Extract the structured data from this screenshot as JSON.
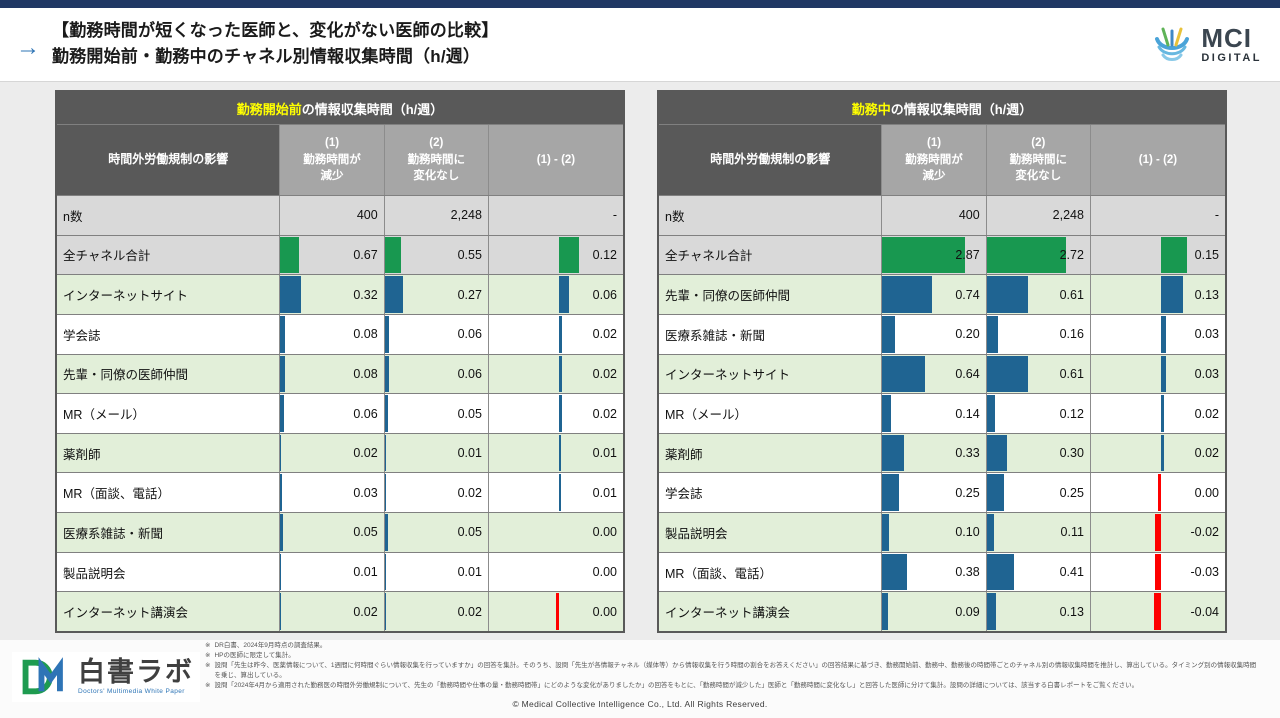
{
  "header": {
    "arrow_glyph": "→",
    "title_line1": "【勤務時間が短くなった医師と、変化がない医師の比較】",
    "title_line2": "勤務開始前・勤務中のチャネル別情報収集時間（h/週）",
    "mci_logo": {
      "name": "MCI",
      "sub": "DIGITAL"
    }
  },
  "tables": [
    {
      "title_highlight": "勤務開始前",
      "title_rest": "の情報収集時間（h/週）",
      "col_headers": {
        "label": "時間外労働規制の影響",
        "col1": "(1)\n勤務時間が\n減少",
        "col2": "(2)\n勤務時間に\n変化なし",
        "diff": "(1) - (2)"
      },
      "n_row": {
        "label": "n数",
        "v1": "400",
        "v2": "2,248",
        "diff": "-"
      },
      "rows": [
        {
          "label": "全チャネル合計",
          "v1": 0.67,
          "v2": 0.55,
          "diff": 0.12,
          "total": true
        },
        {
          "label": "インターネットサイト",
          "v1": 0.32,
          "v2": 0.27,
          "diff": 0.06
        },
        {
          "label": "学会誌",
          "v1": 0.08,
          "v2": 0.06,
          "diff": 0.02
        },
        {
          "label": "先輩・同僚の医師仲間",
          "v1": 0.08,
          "v2": 0.06,
          "diff": 0.02
        },
        {
          "label": "MR（メール）",
          "v1": 0.06,
          "v2": 0.05,
          "diff": 0.02
        },
        {
          "label": "薬剤師",
          "v1": 0.02,
          "v2": 0.01,
          "diff": 0.01
        },
        {
          "label": "MR（面談、電話）",
          "v1": 0.03,
          "v2": 0.02,
          "diff": 0.01
        },
        {
          "label": "医療系雑誌・新聞",
          "v1": 0.05,
          "v2": 0.05,
          "diff": 0.0
        },
        {
          "label": "製品説明会",
          "v1": 0.01,
          "v2": 0.01,
          "diff": 0.0
        },
        {
          "label": "インターネット講演会",
          "v1": 0.02,
          "v2": 0.02,
          "diff": 0.0,
          "red_sliver": true
        }
      ]
    },
    {
      "title_highlight": "勤務中",
      "title_rest": "の情報収集時間（h/週）",
      "col_headers": {
        "label": "時間外労働規制の影響",
        "col1": "(1)\n勤務時間が\n減少",
        "col2": "(2)\n勤務時間に\n変化なし",
        "diff": "(1) - (2)"
      },
      "n_row": {
        "label": "n数",
        "v1": "400",
        "v2": "2,248",
        "diff": "-"
      },
      "rows": [
        {
          "label": "全チャネル合計",
          "v1": 2.87,
          "v2": 2.72,
          "diff": 0.15,
          "total": true
        },
        {
          "label": "先輩・同僚の医師仲間",
          "v1": 0.74,
          "v2": 0.61,
          "diff": 0.13
        },
        {
          "label": "医療系雑誌・新聞",
          "v1": 0.2,
          "v2": 0.16,
          "diff": 0.03
        },
        {
          "label": "インターネットサイト",
          "v1": 0.64,
          "v2": 0.61,
          "diff": 0.03
        },
        {
          "label": "MR（メール）",
          "v1": 0.14,
          "v2": 0.12,
          "diff": 0.02
        },
        {
          "label": "薬剤師",
          "v1": 0.33,
          "v2": 0.3,
          "diff": 0.02
        },
        {
          "label": "学会誌",
          "v1": 0.25,
          "v2": 0.25,
          "diff": 0.0,
          "red_sliver": true
        },
        {
          "label": "製品説明会",
          "v1": 0.1,
          "v2": 0.11,
          "diff": -0.02
        },
        {
          "label": "MR（面談、電話）",
          "v1": 0.38,
          "v2": 0.41,
          "diff": -0.03
        },
        {
          "label": "インターネット講演会",
          "v1": 0.09,
          "v2": 0.13,
          "diff": -0.04
        }
      ]
    }
  ],
  "footnotes": [
    {
      "mark": "※",
      "text": "DR白書、2024年9月時点の調査結果。"
    },
    {
      "mark": "※",
      "text": "HPの医師に限定して集計。"
    },
    {
      "mark": "※",
      "text": "設問「先生は昨今、医薬情報について、1週間に何時間ぐらい情報収集を行っていますか」の回答を集計。そのうち、設問「先生が各情報チャネル（媒体等）から情報収集を行う時間の割合をお答えください」の回答結果に基づき、勤務開始前、勤務中、勤務後の時間帯ごとのチャネル別の情報収集時間を推計し、算出している。タイミング別の情報収集時間を乗じ、算出している。"
    },
    {
      "mark": "※",
      "text": "設問「2024年4月から適用された勤務医の時間外労働規制について、先生の「勤務時間や仕事の量・勤務時間帯」にどのような変化がありましたか」の回答をもとに、「勤務時間が減少した」医師と「勤務時間に変化なし」と回答した医師に分けて集計。設問の詳細については、該当する白書レポートをご覧ください。"
    }
  ],
  "footer": {
    "copyright": "©  Medical Collective Intelligence Co., Ltd.  All Rights Reserved.",
    "hakusho_logo": {
      "jp": "白書ラボ",
      "en": "Doctors' Multimedia White Paper"
    }
  },
  "colors": {
    "bar_green": "#189850",
    "bar_blue": "#1f6492",
    "bar_red": "#fe0000",
    "row_green": "#e2efd9",
    "row_gray": "#d9d9d9",
    "head_dark": "#595959",
    "head_mid": "#a6a6a6",
    "title_yellow": "#ffff00",
    "topbar_navy": "#203864"
  }
}
